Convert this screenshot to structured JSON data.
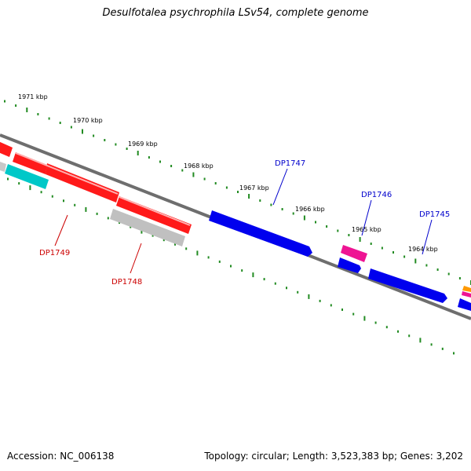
{
  "title": "Desulfotalea psychrophila LSv54, complete genome",
  "accession": "Accession: NC_006138",
  "summary": "Topology: circular; Length: 3,523,383 bp; Genes: 3,202",
  "colors": {
    "backbone": "#808080",
    "tick": "#228b22",
    "red_gene": "#ff0000",
    "grey_gene": "#c0c0c0",
    "cyan_gene": "#00c8c8",
    "blue_gene": "#0000ee",
    "pink_gene": "#ee1493",
    "orange_gene": "#ff9900",
    "label_red": "#cc0000",
    "label_blue": "#0000cc"
  },
  "map": {
    "scale_labels": [
      "1971 kbp",
      "1970 kbp",
      "1969 kbp",
      "1968 kbp",
      "1967 kbp",
      "1966 kbp",
      "1965 kbp",
      "1964 kbp"
    ],
    "gene_labels": [
      {
        "text": "DP1747",
        "color": "blue"
      },
      {
        "text": "DP1746",
        "color": "blue"
      },
      {
        "text": "DP1745",
        "color": "blue"
      },
      {
        "text": "DP1749",
        "color": "red"
      },
      {
        "text": "DP1748",
        "color": "red"
      }
    ]
  }
}
